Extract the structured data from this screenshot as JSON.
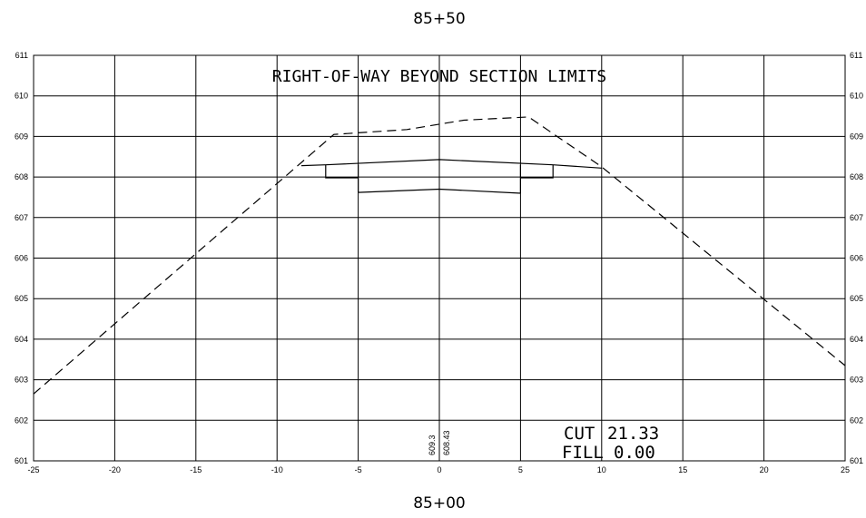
{
  "station_top": "85+50",
  "station_bottom": "85+00",
  "note": "RIGHT-OF-WAY BEYOND SECTION LIMITS",
  "cut_label": "CUT",
  "cut_value": "21.33",
  "fill_label": "FILL",
  "fill_value": "0.00",
  "centerline_labels": [
    "609.3",
    "608.43"
  ],
  "x_ticks": [
    "-25",
    "-20",
    "-15",
    "-10",
    "-5",
    "0",
    "5",
    "10",
    "15",
    "20",
    "25"
  ],
  "y_ticks": [
    "601",
    "602",
    "603",
    "604",
    "605",
    "606",
    "607",
    "608",
    "609",
    "610",
    "611"
  ],
  "colors": {
    "line": "#000000",
    "background": "#ffffff"
  },
  "chart_data": {
    "type": "cross-section",
    "xlim": [
      -25,
      25
    ],
    "ylim": [
      601,
      611
    ],
    "grid": true,
    "ground_line_dashed": [
      [
        -25,
        602.65
      ],
      [
        -6.5,
        609.05
      ],
      [
        -2,
        609.17
      ],
      [
        1.5,
        609.4
      ],
      [
        5.5,
        609.48
      ],
      [
        10,
        608.25
      ],
      [
        25,
        603.35
      ]
    ],
    "proposed_top_surface": [
      [
        -8.5,
        608.28
      ],
      [
        -7,
        608.3
      ],
      [
        0,
        608.43
      ],
      [
        7,
        608.3
      ],
      [
        10,
        608.22
      ]
    ],
    "pavement_bottom": [
      [
        -5,
        607.62
      ],
      [
        0,
        607.7
      ],
      [
        5,
        607.6
      ]
    ],
    "curb_left": [
      [
        -7,
        608.3
      ],
      [
        -7,
        607.98
      ],
      [
        -5,
        607.98
      ]
    ],
    "curb_right": [
      [
        7,
        608.3
      ],
      [
        7,
        607.98
      ],
      [
        5,
        607.98
      ]
    ],
    "vertical_edges": [
      [
        [
          -5,
          608.3
        ],
        [
          -5,
          607.62
        ]
      ],
      [
        [
          5,
          608.3
        ],
        [
          5,
          607.6
        ]
      ]
    ]
  }
}
